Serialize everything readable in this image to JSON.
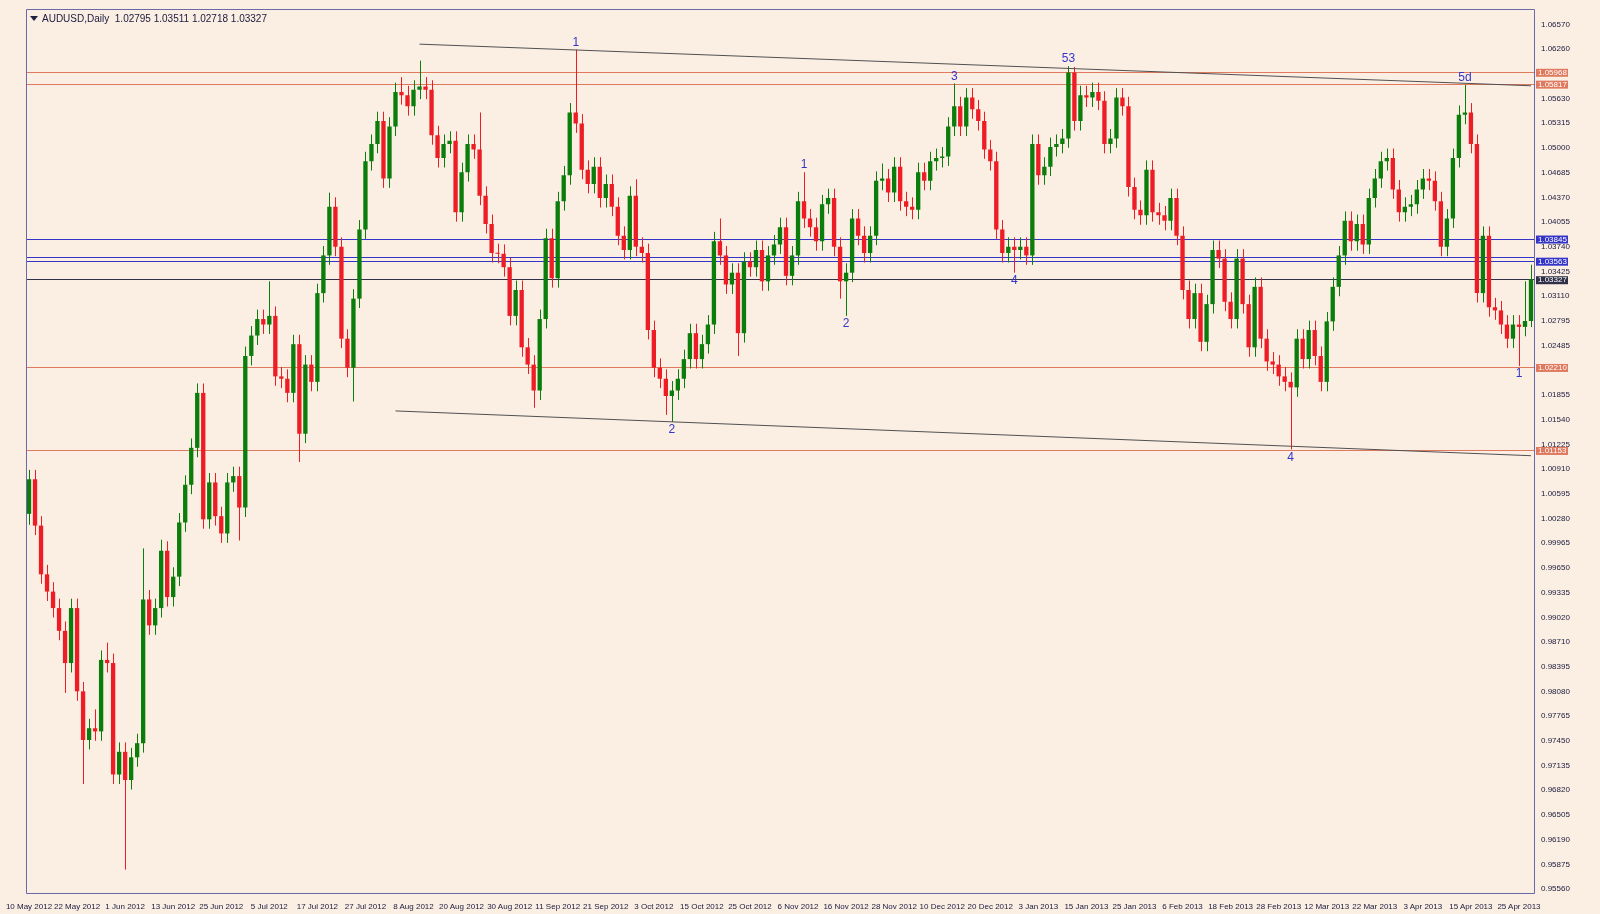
{
  "chart_data": {
    "type": "candlestick",
    "title": "AUDUSD,Daily  1.02795 1.03511 1.02718 1.03327",
    "categories": [
      "10 May 2012",
      null,
      null,
      null,
      null,
      null,
      null,
      null,
      "22 May 2012",
      null,
      null,
      null,
      null,
      null,
      null,
      null,
      "1 Jun 2012",
      null,
      null,
      null,
      null,
      null,
      null,
      null,
      "13 Jun 2012",
      null,
      null,
      null,
      null,
      null,
      null,
      null,
      "25 Jun 2012",
      null,
      null,
      null,
      null,
      null,
      null,
      null,
      "5 Jul 2012",
      null,
      null,
      null,
      null,
      null,
      null,
      null,
      "17 Jul 2012",
      null,
      null,
      null,
      null,
      null,
      null,
      null,
      "27 Jul 2012",
      null,
      null,
      null,
      null,
      null,
      null,
      null,
      "8 Aug 2012",
      null,
      null,
      null,
      null,
      null,
      null,
      null,
      "20 Aug 2012",
      null,
      null,
      null,
      null,
      null,
      null,
      null,
      "30 Aug 2012",
      null,
      null,
      null,
      null,
      null,
      null,
      null,
      "11 Sep 2012",
      null,
      null,
      null,
      null,
      null,
      null,
      null,
      "21 Sep 2012",
      null,
      null,
      null,
      null,
      null,
      null,
      null,
      "3 Oct 2012",
      null,
      null,
      null,
      null,
      null,
      null,
      null,
      "15 Oct 2012",
      null,
      null,
      null,
      null,
      null,
      null,
      null,
      "25 Oct 2012",
      null,
      null,
      null,
      null,
      null,
      null,
      null,
      "6 Nov 2012",
      null,
      null,
      null,
      null,
      null,
      null,
      null,
      "16 Nov 2012",
      null,
      null,
      null,
      null,
      null,
      null,
      null,
      "28 Nov 2012",
      null,
      null,
      null,
      null,
      null,
      null,
      null,
      "10 Dec 2012",
      null,
      null,
      null,
      null,
      null,
      null,
      null,
      "20 Dec 2012",
      null,
      null,
      null,
      null,
      null,
      null,
      null,
      "3 Jan 2013",
      null,
      null,
      null,
      null,
      null,
      null,
      null,
      "15 Jan 2013",
      null,
      null,
      null,
      null,
      null,
      null,
      null,
      "25 Jan 2013",
      null,
      null,
      null,
      null,
      null,
      null,
      null,
      "6 Feb 2013",
      null,
      null,
      null,
      null,
      null,
      null,
      null,
      "18 Feb 2013",
      null,
      null,
      null,
      null,
      null,
      null,
      null,
      "28 Feb 2013",
      null,
      null,
      null,
      null,
      null,
      null,
      null,
      "12 Mar 2013",
      null,
      null,
      null,
      null,
      null,
      null,
      null,
      "22 Mar 2013",
      null,
      null,
      null,
      null,
      null,
      null,
      null,
      "3 Apr 2013",
      null,
      null,
      null,
      null,
      null,
      null,
      null,
      "15 Apr 2013",
      null,
      null,
      null,
      null,
      null,
      null,
      null,
      "25 Apr 2013",
      null,
      null
    ],
    "ohlc": [
      [
        1.0034,
        1.009,
        1.002,
        1.0078
      ],
      [
        1.0078,
        1.009,
        1.0007,
        1.0019
      ],
      [
        1.0019,
        1.0031,
        0.9945,
        0.9957
      ],
      [
        0.9957,
        0.9969,
        0.9923,
        0.9935
      ],
      [
        0.9935,
        0.9947,
        0.9902,
        0.9914
      ],
      [
        0.9914,
        0.9926,
        0.9873,
        0.9885
      ],
      [
        0.9885,
        0.9897,
        0.9806,
        0.9844
      ],
      [
        0.9844,
        0.9926,
        0.9832,
        0.9914
      ],
      [
        0.9914,
        0.9926,
        0.9796,
        0.9808
      ],
      [
        0.9808,
        0.982,
        0.969,
        0.9746
      ],
      [
        0.9746,
        0.9773,
        0.9734,
        0.9761
      ],
      [
        0.9761,
        0.9785,
        0.9745,
        0.9757
      ],
      [
        0.9757,
        0.986,
        0.9745,
        0.9848
      ],
      [
        0.9848,
        0.987,
        0.9832,
        0.9844
      ],
      [
        0.9844,
        0.9856,
        0.969,
        0.9702
      ],
      [
        0.9702,
        0.9743,
        0.969,
        0.9731
      ],
      [
        0.9731,
        0.9743,
        0.9581,
        0.9695
      ],
      [
        0.9695,
        0.9736,
        0.9683,
        0.9724
      ],
      [
        0.9724,
        0.9754,
        0.9712,
        0.9742
      ],
      [
        0.9742,
        0.999,
        0.973,
        0.9925
      ],
      [
        0.9925,
        0.9937,
        0.988,
        0.9892
      ],
      [
        0.9892,
        0.9926,
        0.988,
        0.9914
      ],
      [
        0.9914,
        1.0001,
        0.9902,
        0.9987
      ],
      [
        0.9987,
        0.9999,
        0.9916,
        0.9928
      ],
      [
        0.9928,
        0.9966,
        0.9916,
        0.9954
      ],
      [
        0.9954,
        1.0035,
        0.9942,
        1.0023
      ],
      [
        1.0023,
        1.0083,
        1.0011,
        1.0071
      ],
      [
        1.0071,
        1.013,
        1.0059,
        1.0118
      ],
      [
        1.0118,
        1.02,
        1.0106,
        1.0188
      ],
      [
        1.0188,
        1.02,
        1.0015,
        1.0027
      ],
      [
        1.0027,
        1.0086,
        1.0015,
        1.0074
      ],
      [
        1.0074,
        1.0086,
        1.0019,
        1.0031
      ],
      [
        1.0031,
        1.0043,
        0.9997,
        1.0009
      ],
      [
        1.0009,
        1.0086,
        0.9997,
        1.0074
      ],
      [
        1.0074,
        1.0094,
        1.0062,
        1.0082
      ],
      [
        1.0082,
        1.0094,
        1.0,
        1.0042
      ],
      [
        1.0042,
        1.0247,
        1.003,
        1.0235
      ],
      [
        1.0235,
        1.0273,
        1.0223,
        1.0261
      ],
      [
        1.0261,
        1.0294,
        1.0249,
        1.0282
      ],
      [
        1.0282,
        1.0294,
        1.0263,
        1.0275
      ],
      [
        1.0275,
        1.033,
        1.0263,
        1.0286
      ],
      [
        1.0286,
        1.0298,
        1.0197,
        1.0209
      ],
      [
        1.0209,
        1.0221,
        1.0194,
        1.0206
      ],
      [
        1.0206,
        1.0218,
        1.0176,
        1.0188
      ],
      [
        1.0188,
        1.0262,
        1.0176,
        1.025
      ],
      [
        1.025,
        1.0262,
        1.01,
        1.0136
      ],
      [
        1.0136,
        1.0236,
        1.0124,
        1.0224
      ],
      [
        1.0224,
        1.0236,
        1.019,
        1.0202
      ],
      [
        1.0202,
        1.0327,
        1.019,
        1.0315
      ],
      [
        1.0315,
        1.0375,
        1.0303,
        1.0363
      ],
      [
        1.0363,
        1.0443,
        1.0351,
        1.0425
      ],
      [
        1.0425,
        1.0437,
        1.0362,
        1.0374
      ],
      [
        1.0374,
        1.0386,
        1.0245,
        1.0257
      ],
      [
        1.0257,
        1.0269,
        1.0208,
        1.022
      ],
      [
        1.022,
        1.032,
        1.0177,
        1.0308
      ],
      [
        1.0308,
        1.0408,
        1.0296,
        1.0396
      ],
      [
        1.0396,
        1.0495,
        1.0384,
        1.0483
      ],
      [
        1.0483,
        1.0517,
        1.0471,
        1.0505
      ],
      [
        1.0505,
        1.0546,
        1.0493,
        1.0534
      ],
      [
        1.0534,
        1.0546,
        1.0449,
        1.0461
      ],
      [
        1.0461,
        1.0539,
        1.0449,
        1.0527
      ],
      [
        1.0527,
        1.0583,
        1.0515,
        1.0571
      ],
      [
        1.0571,
        1.059,
        1.0555,
        1.0567
      ],
      [
        1.0567,
        1.0579,
        1.0541,
        1.0553
      ],
      [
        1.0553,
        1.0586,
        1.0541,
        1.0574
      ],
      [
        1.0574,
        1.0611,
        1.0562,
        1.0578
      ],
      [
        1.0578,
        1.059,
        1.0562,
        1.0574
      ],
      [
        1.0574,
        1.0586,
        1.0504,
        1.0516
      ],
      [
        1.0516,
        1.0528,
        1.0475,
        1.0487
      ],
      [
        1.0487,
        1.0517,
        1.0475,
        1.0505
      ],
      [
        1.0505,
        1.0521,
        1.0493,
        1.0509
      ],
      [
        1.0509,
        1.0521,
        1.0406,
        1.0418
      ],
      [
        1.0418,
        1.0481,
        1.0406,
        1.0469
      ],
      [
        1.0469,
        1.0517,
        1.0457,
        1.0505
      ],
      [
        1.0505,
        1.0517,
        1.0486,
        1.0498
      ],
      [
        1.0498,
        1.0545,
        1.0427,
        1.0439
      ],
      [
        1.0439,
        1.0451,
        1.0391,
        1.0403
      ],
      [
        1.0403,
        1.0415,
        1.0354,
        1.0366
      ],
      [
        1.0366,
        1.0378,
        1.0353,
        1.0365
      ],
      [
        1.0365,
        1.0377,
        1.0336,
        1.0348
      ],
      [
        1.0348,
        1.036,
        1.0274,
        1.0286
      ],
      [
        1.0286,
        1.0331,
        1.0274,
        1.0319
      ],
      [
        1.0319,
        1.0331,
        1.0234,
        1.0246
      ],
      [
        1.0246,
        1.0258,
        1.0212,
        1.0224
      ],
      [
        1.0224,
        1.0236,
        1.0169,
        1.0191
      ],
      [
        1.0191,
        1.0294,
        1.0179,
        1.0282
      ],
      [
        1.0282,
        1.0397,
        1.027,
        1.0385
      ],
      [
        1.0385,
        1.0397,
        1.0322,
        1.0334
      ],
      [
        1.0334,
        1.0444,
        1.0322,
        1.0432
      ],
      [
        1.0432,
        1.0477,
        1.042,
        1.0465
      ],
      [
        1.0465,
        1.0557,
        1.0453,
        1.0545
      ],
      [
        1.0545,
        1.0625,
        1.0519,
        1.0531
      ],
      [
        1.0531,
        1.0543,
        1.046,
        1.0472
      ],
      [
        1.0472,
        1.0484,
        1.0442,
        1.0454
      ],
      [
        1.0454,
        1.0488,
        1.0442,
        1.0476
      ],
      [
        1.0476,
        1.0488,
        1.0424,
        1.0436
      ],
      [
        1.0436,
        1.0466,
        1.0424,
        1.0454
      ],
      [
        1.0454,
        1.0466,
        1.0413,
        1.0425
      ],
      [
        1.0425,
        1.0437,
        1.0376,
        1.0388
      ],
      [
        1.0388,
        1.04,
        1.0358,
        1.037
      ],
      [
        1.037,
        1.0451,
        1.0358,
        1.0439
      ],
      [
        1.0439,
        1.046,
        1.0362,
        1.0374
      ],
      [
        1.0374,
        1.0386,
        1.0354,
        1.0366
      ],
      [
        1.0366,
        1.0378,
        1.0256,
        1.0268
      ],
      [
        1.0268,
        1.028,
        1.0208,
        1.022
      ],
      [
        1.022,
        1.0232,
        1.0194,
        1.0206
      ],
      [
        1.0206,
        1.0218,
        1.016,
        1.0184
      ],
      [
        1.0184,
        1.0203,
        1.0151,
        1.0191
      ],
      [
        1.0191,
        1.0218,
        1.0179,
        1.0206
      ],
      [
        1.0206,
        1.0243,
        1.0194,
        1.0231
      ],
      [
        1.0231,
        1.0276,
        1.0219,
        1.0264
      ],
      [
        1.0264,
        1.0276,
        1.0219,
        1.0231
      ],
      [
        1.0231,
        1.0262,
        1.0219,
        1.025
      ],
      [
        1.025,
        1.0287,
        1.0238,
        1.0275
      ],
      [
        1.0275,
        1.0393,
        1.0263,
        1.0381
      ],
      [
        1.0381,
        1.041,
        1.0351,
        1.0363
      ],
      [
        1.0363,
        1.0375,
        1.0314,
        1.0326
      ],
      [
        1.0326,
        1.0353,
        1.0314,
        1.0341
      ],
      [
        1.0341,
        1.0353,
        1.0235,
        1.0264
      ],
      [
        1.0264,
        1.0367,
        1.0252,
        1.0355
      ],
      [
        1.0355,
        1.0367,
        1.0336,
        1.0348
      ],
      [
        1.0348,
        1.0382,
        1.0336,
        1.037
      ],
      [
        1.037,
        1.0382,
        1.0318,
        1.033
      ],
      [
        1.033,
        1.0375,
        1.0318,
        1.0363
      ],
      [
        1.0363,
        1.0389,
        1.0351,
        1.0377
      ],
      [
        1.0377,
        1.0411,
        1.0365,
        1.0399
      ],
      [
        1.0399,
        1.0411,
        1.0325,
        1.0337
      ],
      [
        1.0337,
        1.0375,
        1.0325,
        1.0363
      ],
      [
        1.0363,
        1.0444,
        1.0351,
        1.0432
      ],
      [
        1.0432,
        1.0469,
        1.0398,
        1.041
      ],
      [
        1.041,
        1.0422,
        1.0387,
        1.0399
      ],
      [
        1.0399,
        1.0411,
        1.0369,
        1.0381
      ],
      [
        1.0381,
        1.044,
        1.0369,
        1.0428
      ],
      [
        1.0428,
        1.0448,
        1.0416,
        1.0436
      ],
      [
        1.0436,
        1.0448,
        1.0362,
        1.0374
      ],
      [
        1.0374,
        1.0386,
        1.0308,
        1.033
      ],
      [
        1.033,
        1.0353,
        1.0286,
        1.0341
      ],
      [
        1.0341,
        1.0422,
        1.0329,
        1.041
      ],
      [
        1.041,
        1.0422,
        1.0376,
        1.0388
      ],
      [
        1.0388,
        1.04,
        1.0354,
        1.0366
      ],
      [
        1.0366,
        1.04,
        1.0354,
        1.0388
      ],
      [
        1.0388,
        1.047,
        1.0376,
        1.0458
      ],
      [
        1.0458,
        1.048,
        1.0446,
        1.0461
      ],
      [
        1.0461,
        1.0473,
        1.0431,
        1.0443
      ],
      [
        1.0443,
        1.0488,
        1.0431,
        1.0476
      ],
      [
        1.0476,
        1.0488,
        1.042,
        1.0432
      ],
      [
        1.0432,
        1.0444,
        1.0413,
        1.0425
      ],
      [
        1.0425,
        1.0437,
        1.0409,
        1.0421
      ],
      [
        1.0421,
        1.0481,
        1.0409,
        1.0469
      ],
      [
        1.0469,
        1.0481,
        1.0446,
        1.0458
      ],
      [
        1.0458,
        1.0495,
        1.0446,
        1.0483
      ],
      [
        1.0483,
        1.0499,
        1.0471,
        1.0487
      ],
      [
        1.0487,
        1.0501,
        1.0475,
        1.0489
      ],
      [
        1.0489,
        1.0539,
        1.0477,
        1.0527
      ],
      [
        1.0527,
        1.0582,
        1.0515,
        1.0553
      ],
      [
        1.0553,
        1.0565,
        1.0515,
        1.0527
      ],
      [
        1.0527,
        1.0576,
        1.0515,
        1.0564
      ],
      [
        1.0564,
        1.0576,
        1.0537,
        1.0549
      ],
      [
        1.0549,
        1.0561,
        1.0522,
        1.0534
      ],
      [
        1.0534,
        1.0546,
        1.0486,
        1.0498
      ],
      [
        1.0498,
        1.051,
        1.0471,
        1.0483
      ],
      [
        1.0483,
        1.0495,
        1.0384,
        1.0396
      ],
      [
        1.0396,
        1.0408,
        1.0354,
        1.0366
      ],
      [
        1.0366,
        1.0386,
        1.0354,
        1.0374
      ],
      [
        1.0374,
        1.0386,
        1.0341,
        1.037
      ],
      [
        1.037,
        1.0386,
        1.0358,
        1.0374
      ],
      [
        1.0374,
        1.0386,
        1.0351,
        1.0363
      ],
      [
        1.0363,
        1.0517,
        1.0351,
        1.0505
      ],
      [
        1.0505,
        1.0517,
        1.0453,
        1.0465
      ],
      [
        1.0465,
        1.0488,
        1.0453,
        1.0476
      ],
      [
        1.0476,
        1.0513,
        1.0464,
        1.0501
      ],
      [
        1.0501,
        1.0517,
        1.0489,
        1.0505
      ],
      [
        1.0505,
        1.0524,
        1.0493,
        1.0512
      ],
      [
        1.0512,
        1.0604,
        1.05,
        1.0596
      ],
      [
        1.0596,
        1.0603,
        1.0522,
        1.0534
      ],
      [
        1.0534,
        1.0579,
        1.0522,
        1.0567
      ],
      [
        1.0567,
        1.0579,
        1.0552,
        1.0564
      ],
      [
        1.0564,
        1.0583,
        1.0552,
        1.0571
      ],
      [
        1.0571,
        1.0583,
        1.0548,
        1.056
      ],
      [
        1.056,
        1.0572,
        1.0493,
        1.0505
      ],
      [
        1.0505,
        1.0524,
        1.0493,
        1.0512
      ],
      [
        1.0512,
        1.0576,
        1.05,
        1.0564
      ],
      [
        1.0564,
        1.0576,
        1.0541,
        1.0553
      ],
      [
        1.0553,
        1.0565,
        1.0438,
        1.045
      ],
      [
        1.045,
        1.0462,
        1.0409,
        1.0421
      ],
      [
        1.0421,
        1.0433,
        1.0402,
        1.0414
      ],
      [
        1.0414,
        1.0484,
        1.0402,
        1.0472
      ],
      [
        1.0472,
        1.0484,
        1.0406,
        1.0418
      ],
      [
        1.0418,
        1.043,
        1.0402,
        1.0414
      ],
      [
        1.0414,
        1.0426,
        1.0395,
        1.0407
      ],
      [
        1.0407,
        1.0448,
        1.0395,
        1.0436
      ],
      [
        1.0436,
        1.0448,
        1.0376,
        1.0388
      ],
      [
        1.0388,
        1.04,
        1.0307,
        1.0319
      ],
      [
        1.0319,
        1.0331,
        1.027,
        1.0282
      ],
      [
        1.0282,
        1.0327,
        1.027,
        1.0315
      ],
      [
        1.0315,
        1.0327,
        1.0241,
        1.0253
      ],
      [
        1.0253,
        1.0313,
        1.0241,
        1.0301
      ],
      [
        1.0301,
        1.0382,
        1.0289,
        1.037
      ],
      [
        1.037,
        1.0382,
        1.0347,
        1.0359
      ],
      [
        1.0359,
        1.0371,
        1.0292,
        1.0304
      ],
      [
        1.0304,
        1.0316,
        1.027,
        1.0282
      ],
      [
        1.0282,
        1.0371,
        1.027,
        1.0359
      ],
      [
        1.0359,
        1.0371,
        1.0289,
        1.0301
      ],
      [
        1.0301,
        1.0313,
        1.0234,
        1.0246
      ],
      [
        1.0246,
        1.0335,
        1.0234,
        1.0323
      ],
      [
        1.0323,
        1.0335,
        1.0245,
        1.0257
      ],
      [
        1.0257,
        1.0269,
        1.0216,
        1.0228
      ],
      [
        1.0228,
        1.024,
        1.0212,
        1.0224
      ],
      [
        1.0224,
        1.0236,
        1.0197,
        1.0209
      ],
      [
        1.0209,
        1.0221,
        1.019,
        1.0202
      ],
      [
        1.0202,
        1.0214,
        1.0116,
        1.0195
      ],
      [
        1.0195,
        1.0269,
        1.0183,
        1.0257
      ],
      [
        1.0257,
        1.0269,
        1.0219,
        1.0231
      ],
      [
        1.0231,
        1.028,
        1.0219,
        1.0268
      ],
      [
        1.0268,
        1.028,
        1.0223,
        1.0235
      ],
      [
        1.0235,
        1.0247,
        1.019,
        1.0202
      ],
      [
        1.0202,
        1.0291,
        1.019,
        1.0279
      ],
      [
        1.0279,
        1.0335,
        1.0267,
        1.0323
      ],
      [
        1.0323,
        1.0375,
        1.0311,
        1.0363
      ],
      [
        1.0363,
        1.0419,
        1.0351,
        1.0407
      ],
      [
        1.0407,
        1.0419,
        1.0369,
        1.0381
      ],
      [
        1.0381,
        1.0415,
        1.0369,
        1.0403
      ],
      [
        1.0403,
        1.0415,
        1.0365,
        1.0377
      ],
      [
        1.0377,
        1.0448,
        1.0365,
        1.0436
      ],
      [
        1.0436,
        1.0473,
        1.0424,
        1.0461
      ],
      [
        1.0461,
        1.0495,
        1.0449,
        1.0483
      ],
      [
        1.0483,
        1.0499,
        1.0471,
        1.0487
      ],
      [
        1.0487,
        1.0499,
        1.0435,
        1.0447
      ],
      [
        1.0447,
        1.0459,
        1.0406,
        1.0418
      ],
      [
        1.0418,
        1.0437,
        1.0406,
        1.0425
      ],
      [
        1.0425,
        1.044,
        1.0413,
        1.0428
      ],
      [
        1.0428,
        1.0459,
        1.0416,
        1.0447
      ],
      [
        1.0447,
        1.0473,
        1.0435,
        1.0461
      ],
      [
        1.0461,
        1.0473,
        1.0446,
        1.0458
      ],
      [
        1.0458,
        1.047,
        1.042,
        1.0432
      ],
      [
        1.0432,
        1.0444,
        1.0362,
        1.0374
      ],
      [
        1.0374,
        1.0422,
        1.0362,
        1.041
      ],
      [
        1.041,
        1.0499,
        1.0398,
        1.0487
      ],
      [
        1.0487,
        1.0554,
        1.0475,
        1.0542
      ],
      [
        1.0542,
        1.058,
        1.053,
        1.0545
      ],
      [
        1.0545,
        1.0557,
        1.0493,
        1.0505
      ],
      [
        1.0505,
        1.0517,
        1.0303,
        1.0315
      ],
      [
        1.0315,
        1.04,
        1.0303,
        1.0388
      ],
      [
        1.0388,
        1.04,
        1.0285,
        1.0297
      ],
      [
        1.0297,
        1.0309,
        1.0281,
        1.0293
      ],
      [
        1.0293,
        1.0305,
        1.0263,
        1.0275
      ],
      [
        1.0275,
        1.0287,
        1.0245,
        1.0257
      ],
      [
        1.0257,
        1.0287,
        1.0245,
        1.0275
      ],
      [
        1.0275,
        1.0287,
        1.0222,
        1.0272
      ],
      [
        1.0272,
        1.033,
        1.026,
        1.02795
      ],
      [
        1.02795,
        1.03511,
        1.02718,
        1.03327
      ]
    ],
    "series": [
      {
        "type": "line",
        "color": "#505050",
        "values": [
          null,
          null,
          null,
          null,
          null,
          null,
          null,
          null,
          null,
          null,
          null,
          null,
          null,
          null,
          null,
          null,
          null,
          null,
          null,
          null,
          null,
          null,
          null,
          null,
          null,
          null,
          null,
          null,
          null,
          null,
          null,
          null,
          null,
          null,
          null,
          null,
          null,
          null,
          null,
          null,
          null,
          null,
          null,
          null,
          null,
          null,
          null,
          null,
          null,
          null,
          null,
          null,
          null,
          null,
          null,
          null,
          null,
          null,
          null,
          null,
          null,
          null,
          null,
          null,
          null,
          1.0632,
          null,
          null,
          null,
          null,
          null,
          null,
          null,
          null,
          null,
          null,
          null,
          null,
          null,
          null,
          null,
          null,
          null,
          null,
          null,
          null,
          null,
          null,
          null,
          null,
          null,
          null,
          null,
          null,
          null,
          null,
          null,
          null,
          null,
          null,
          null,
          null,
          null,
          null,
          null,
          null,
          null,
          null,
          null,
          null,
          null,
          null,
          null,
          null,
          null,
          null,
          null,
          null,
          null,
          null,
          null,
          null,
          null,
          null,
          null,
          null,
          null,
          null,
          null,
          null,
          null,
          null,
          null,
          null,
          null,
          null,
          null,
          null,
          null,
          null,
          null,
          null,
          null,
          null,
          null,
          null,
          null,
          null,
          null,
          null,
          null,
          null,
          null,
          null,
          null,
          null,
          null,
          null,
          null,
          null,
          null,
          null,
          null,
          null,
          null,
          null,
          null,
          null,
          null,
          null,
          null,
          null,
          null,
          null,
          null,
          null,
          null,
          null,
          null,
          null,
          null,
          null,
          null,
          null,
          null,
          null,
          null,
          null,
          null,
          null,
          null,
          null,
          null,
          null,
          null,
          null,
          null,
          null,
          null,
          null,
          null,
          null,
          null,
          null,
          null,
          null,
          null,
          null,
          null,
          null,
          null,
          null,
          null,
          null,
          null,
          null,
          null,
          null,
          null,
          null,
          null,
          null,
          null,
          null,
          null,
          null,
          null,
          null,
          null,
          null,
          null,
          null,
          null,
          null,
          null,
          null,
          null,
          null,
          null,
          null,
          null,
          null,
          null,
          null,
          null,
          null,
          null,
          null,
          null,
          null,
          1.0579
        ]
      },
      {
        "type": "line",
        "color": "#505050",
        "values": [
          null,
          null,
          null,
          null,
          null,
          null,
          null,
          null,
          null,
          null,
          null,
          null,
          null,
          null,
          null,
          null,
          null,
          null,
          null,
          null,
          null,
          null,
          null,
          null,
          null,
          null,
          null,
          null,
          null,
          null,
          null,
          null,
          null,
          null,
          null,
          null,
          null,
          null,
          null,
          null,
          null,
          null,
          null,
          null,
          null,
          null,
          null,
          null,
          null,
          null,
          null,
          null,
          null,
          null,
          null,
          null,
          null,
          null,
          null,
          null,
          null,
          1.0165,
          null,
          null,
          null,
          null,
          null,
          null,
          null,
          null,
          null,
          null,
          null,
          null,
          null,
          null,
          null,
          null,
          null,
          null,
          null,
          null,
          null,
          null,
          null,
          null,
          null,
          null,
          null,
          null,
          null,
          null,
          null,
          null,
          null,
          null,
          null,
          null,
          null,
          null,
          null,
          null,
          null,
          null,
          null,
          null,
          null,
          null,
          null,
          null,
          null,
          null,
          null,
          null,
          null,
          null,
          null,
          null,
          null,
          null,
          null,
          null,
          null,
          null,
          null,
          null,
          null,
          null,
          null,
          null,
          null,
          null,
          null,
          null,
          null,
          null,
          null,
          null,
          null,
          null,
          null,
          null,
          null,
          null,
          null,
          null,
          null,
          null,
          null,
          null,
          null,
          null,
          null,
          null,
          null,
          null,
          null,
          null,
          null,
          null,
          null,
          null,
          null,
          null,
          null,
          null,
          null,
          null,
          null,
          null,
          null,
          null,
          null,
          null,
          null,
          null,
          null,
          null,
          null,
          null,
          null,
          null,
          null,
          null,
          null,
          null,
          null,
          null,
          null,
          null,
          null,
          null,
          null,
          null,
          null,
          null,
          null,
          null,
          null,
          null,
          null,
          null,
          null,
          null,
          null,
          null,
          null,
          null,
          null,
          null,
          null,
          null,
          null,
          null,
          null,
          null,
          null,
          null,
          null,
          null,
          null,
          null,
          null,
          null,
          null,
          null,
          null,
          null,
          null,
          null,
          null,
          null,
          null,
          null,
          null,
          null,
          null,
          null,
          null,
          null,
          null,
          null,
          null,
          null,
          null,
          null,
          null,
          null,
          null,
          null,
          1.0108
        ]
      }
    ],
    "ylim": [
      0.9552,
      1.0677
    ],
    "yticks": [
      {
        "value": 1.0657,
        "label": "1.06570"
      },
      {
        "value": 1.0626,
        "label": "1.06260"
      },
      {
        "value": 1.0563,
        "label": "1.05630"
      },
      1.05315,
      {
        "value": 1.05,
        "label": "1.05000"
      },
      1.04685,
      {
        "value": 1.0437,
        "label": "1.04370"
      },
      1.04055,
      {
        "value": 1.0374,
        "label": "1.03740"
      },
      1.03425,
      {
        "value": 1.0311,
        "label": "1.03110"
      },
      1.02795,
      1.02485,
      1.01855,
      {
        "value": 1.0154,
        "label": "1.01540"
      },
      1.01225,
      {
        "value": 1.0091,
        "label": "1.00910"
      },
      1.00595,
      {
        "value": 1.0028,
        "label": "1.00280"
      },
      0.99965,
      {
        "value": 0.9965,
        "label": "0.99650"
      },
      0.99335,
      {
        "value": 0.9902,
        "label": "0.99020"
      },
      {
        "value": 0.9871,
        "label": "0.98710"
      },
      0.98395,
      {
        "value": 0.9808,
        "label": "0.98080"
      },
      0.97765,
      {
        "value": 0.9745,
        "label": "0.97450"
      },
      0.97135,
      {
        "value": 0.9682,
        "label": "0.96820"
      },
      0.96505,
      {
        "value": 0.9619,
        "label": "0.96190"
      },
      0.95875,
      {
        "value": 0.9556,
        "label": "0.95560"
      }
    ],
    "ref_lines": [
      {
        "axis": "y",
        "value": 1.05968,
        "label": "1.05968",
        "color": "#e07a5f"
      },
      {
        "axis": "y",
        "value": 1.05817,
        "label": "1.05817",
        "color": "#e07a5f"
      },
      {
        "axis": "y",
        "value": 1.03845,
        "label": "1.03845",
        "color": "#3434c8"
      },
      {
        "axis": "y",
        "value": 1.03613,
        "color": "#3434c8"
      },
      {
        "axis": "y",
        "value": 1.03563,
        "label": "1.03563",
        "color": "#3434c8"
      },
      {
        "axis": "y",
        "value": 1.03327,
        "label": "1.03327",
        "color": "#303048"
      },
      {
        "axis": "y",
        "value": 1.0221,
        "label": "1.02210",
        "color": "#e07a5f"
      },
      {
        "axis": "y",
        "value": 1.01153,
        "label": "1.01153",
        "color": "#e07a5f"
      }
    ],
    "annotations": [
      {
        "text": "1",
        "y": 1.0625
      },
      {
        "text": "2",
        "y": 1.0151
      },
      {
        "text": "1",
        "y": 1.0469
      },
      {
        "text": "2",
        "y": 1.0286
      },
      {
        "text": "3",
        "y": 1.0582
      },
      {
        "text": "4",
        "y": 1.0341
      },
      {
        "text": "53",
        "y": 1.0604
      },
      {
        "text": "4",
        "y": 1.0116
      },
      {
        "text": "5d",
        "y": 1.058
      },
      {
        "text": "1",
        "y": 1.0222
      }
    ],
    "grid": false,
    "legend": false
  }
}
